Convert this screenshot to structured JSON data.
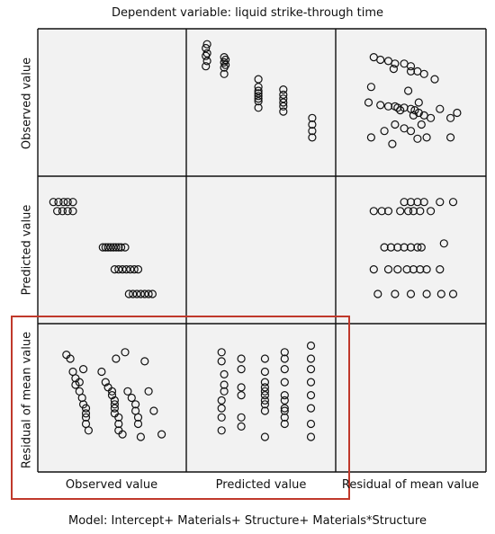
{
  "title": "Dependent variable: liquid strike-through time",
  "footer": "Model: Intercept+ Materials+ Structure+ Materials*Structure",
  "variables": [
    "Observed value",
    "Predicted value",
    "Residual of mean value"
  ],
  "colors": {
    "panel_bg": "#f2f2f2",
    "grid": "#111111",
    "marker": "#111111",
    "highlight": "#c0392b"
  },
  "highlight": {
    "description": "red box around residual row, observed and predicted columns",
    "rows": [
      2
    ],
    "cols": [
      0,
      1
    ]
  },
  "chart_data": {
    "type": "scatter",
    "title": "Dependent variable: liquid strike-through time",
    "matrix_variables": [
      "Observed value",
      "Predicted value",
      "Residual of mean value"
    ],
    "grid": "3x3 scatterplot matrix, diagonal empty",
    "scale": "normalized 0-1 (no tick labels shown)",
    "panels": [
      {
        "row": 0,
        "col": 1,
        "x": "Predicted value",
        "y": "Observed value",
        "points": [
          [
            0.08,
            0.78
          ],
          [
            0.08,
            0.86
          ],
          [
            0.08,
            0.92
          ],
          [
            0.09,
            0.82
          ],
          [
            0.09,
            0.88
          ],
          [
            0.09,
            0.95
          ],
          [
            0.22,
            0.72
          ],
          [
            0.22,
            0.77
          ],
          [
            0.22,
            0.81
          ],
          [
            0.22,
            0.85
          ],
          [
            0.23,
            0.79
          ],
          [
            0.23,
            0.83
          ],
          [
            0.48,
            0.46
          ],
          [
            0.48,
            0.51
          ],
          [
            0.48,
            0.53
          ],
          [
            0.48,
            0.55
          ],
          [
            0.48,
            0.57
          ],
          [
            0.48,
            0.59
          ],
          [
            0.48,
            0.62
          ],
          [
            0.48,
            0.68
          ],
          [
            0.67,
            0.43
          ],
          [
            0.67,
            0.47
          ],
          [
            0.67,
            0.5
          ],
          [
            0.67,
            0.53
          ],
          [
            0.67,
            0.56
          ],
          [
            0.67,
            0.6
          ],
          [
            0.89,
            0.23
          ],
          [
            0.89,
            0.28
          ],
          [
            0.89,
            0.33
          ],
          [
            0.89,
            0.38
          ]
        ]
      },
      {
        "row": 0,
        "col": 2,
        "x": "Residual of mean value",
        "y": "Observed value",
        "points": [
          [
            0.22,
            0.85
          ],
          [
            0.27,
            0.83
          ],
          [
            0.33,
            0.82
          ],
          [
            0.38,
            0.8
          ],
          [
            0.45,
            0.8
          ],
          [
            0.5,
            0.78
          ],
          [
            0.55,
            0.74
          ],
          [
            0.6,
            0.72
          ],
          [
            0.5,
            0.74
          ],
          [
            0.68,
            0.68
          ],
          [
            0.37,
            0.76
          ],
          [
            0.18,
            0.5
          ],
          [
            0.27,
            0.48
          ],
          [
            0.33,
            0.47
          ],
          [
            0.38,
            0.47
          ],
          [
            0.4,
            0.46
          ],
          [
            0.45,
            0.46
          ],
          [
            0.5,
            0.45
          ],
          [
            0.53,
            0.44
          ],
          [
            0.56,
            0.42
          ],
          [
            0.6,
            0.4
          ],
          [
            0.65,
            0.38
          ],
          [
            0.42,
            0.44
          ],
          [
            0.2,
            0.23
          ],
          [
            0.3,
            0.28
          ],
          [
            0.38,
            0.33
          ],
          [
            0.45,
            0.3
          ],
          [
            0.5,
            0.28
          ],
          [
            0.55,
            0.22
          ],
          [
            0.62,
            0.23
          ],
          [
            0.72,
            0.45
          ],
          [
            0.36,
            0.18
          ],
          [
            0.8,
            0.23
          ],
          [
            0.85,
            0.42
          ],
          [
            0.8,
            0.38
          ],
          [
            0.58,
            0.33
          ],
          [
            0.52,
            0.4
          ],
          [
            0.56,
            0.5
          ],
          [
            0.48,
            0.59
          ],
          [
            0.2,
            0.62
          ]
        ]
      },
      {
        "row": 1,
        "col": 0,
        "x": "Observed value",
        "y": "Predicted value",
        "points": [
          [
            0.05,
            0.87
          ],
          [
            0.09,
            0.87
          ],
          [
            0.13,
            0.87
          ],
          [
            0.16,
            0.87
          ],
          [
            0.2,
            0.87
          ],
          [
            0.08,
            0.8
          ],
          [
            0.12,
            0.8
          ],
          [
            0.16,
            0.8
          ],
          [
            0.2,
            0.8
          ],
          [
            0.43,
            0.52
          ],
          [
            0.45,
            0.52
          ],
          [
            0.47,
            0.52
          ],
          [
            0.49,
            0.52
          ],
          [
            0.51,
            0.52
          ],
          [
            0.53,
            0.52
          ],
          [
            0.55,
            0.52
          ],
          [
            0.57,
            0.52
          ],
          [
            0.6,
            0.52
          ],
          [
            0.52,
            0.35
          ],
          [
            0.55,
            0.35
          ],
          [
            0.58,
            0.35
          ],
          [
            0.61,
            0.35
          ],
          [
            0.64,
            0.35
          ],
          [
            0.67,
            0.35
          ],
          [
            0.7,
            0.35
          ],
          [
            0.63,
            0.16
          ],
          [
            0.66,
            0.16
          ],
          [
            0.69,
            0.16
          ],
          [
            0.72,
            0.16
          ],
          [
            0.75,
            0.16
          ],
          [
            0.78,
            0.16
          ],
          [
            0.81,
            0.16
          ]
        ]
      },
      {
        "row": 1,
        "col": 2,
        "x": "Residual of mean value",
        "y": "Predicted value",
        "points": [
          [
            0.25,
            0.16
          ],
          [
            0.38,
            0.16
          ],
          [
            0.5,
            0.16
          ],
          [
            0.62,
            0.16
          ],
          [
            0.73,
            0.16
          ],
          [
            0.82,
            0.16
          ],
          [
            0.22,
            0.35
          ],
          [
            0.33,
            0.35
          ],
          [
            0.4,
            0.35
          ],
          [
            0.47,
            0.35
          ],
          [
            0.52,
            0.35
          ],
          [
            0.57,
            0.35
          ],
          [
            0.62,
            0.35
          ],
          [
            0.72,
            0.35
          ],
          [
            0.3,
            0.52
          ],
          [
            0.35,
            0.52
          ],
          [
            0.4,
            0.52
          ],
          [
            0.45,
            0.52
          ],
          [
            0.5,
            0.52
          ],
          [
            0.55,
            0.52
          ],
          [
            0.58,
            0.52
          ],
          [
            0.75,
            0.55
          ],
          [
            0.22,
            0.8
          ],
          [
            0.28,
            0.8
          ],
          [
            0.33,
            0.8
          ],
          [
            0.42,
            0.8
          ],
          [
            0.48,
            0.8
          ],
          [
            0.52,
            0.8
          ],
          [
            0.57,
            0.8
          ],
          [
            0.65,
            0.8
          ],
          [
            0.45,
            0.87
          ],
          [
            0.5,
            0.87
          ],
          [
            0.55,
            0.87
          ],
          [
            0.6,
            0.87
          ],
          [
            0.72,
            0.87
          ],
          [
            0.82,
            0.87
          ]
        ]
      },
      {
        "row": 2,
        "col": 0,
        "x": "Observed value",
        "y": "Residual of mean value",
        "points": [
          [
            0.15,
            0.83
          ],
          [
            0.18,
            0.8
          ],
          [
            0.2,
            0.7
          ],
          [
            0.22,
            0.65
          ],
          [
            0.22,
            0.6
          ],
          [
            0.25,
            0.55
          ],
          [
            0.27,
            0.5
          ],
          [
            0.28,
            0.45
          ],
          [
            0.3,
            0.42
          ],
          [
            0.3,
            0.38
          ],
          [
            0.3,
            0.35
          ],
          [
            0.3,
            0.3
          ],
          [
            0.32,
            0.25
          ],
          [
            0.28,
            0.72
          ],
          [
            0.25,
            0.62
          ],
          [
            0.42,
            0.7
          ],
          [
            0.45,
            0.62
          ],
          [
            0.47,
            0.58
          ],
          [
            0.5,
            0.55
          ],
          [
            0.5,
            0.52
          ],
          [
            0.52,
            0.48
          ],
          [
            0.52,
            0.45
          ],
          [
            0.52,
            0.42
          ],
          [
            0.52,
            0.38
          ],
          [
            0.55,
            0.35
          ],
          [
            0.55,
            0.3
          ],
          [
            0.55,
            0.25
          ],
          [
            0.58,
            0.22
          ],
          [
            0.6,
            0.85
          ],
          [
            0.53,
            0.8
          ],
          [
            0.62,
            0.55
          ],
          [
            0.65,
            0.5
          ],
          [
            0.68,
            0.45
          ],
          [
            0.68,
            0.4
          ],
          [
            0.7,
            0.35
          ],
          [
            0.7,
            0.3
          ],
          [
            0.72,
            0.2
          ],
          [
            0.75,
            0.78
          ],
          [
            0.78,
            0.55
          ],
          [
            0.82,
            0.4
          ],
          [
            0.88,
            0.22
          ]
        ]
      },
      {
        "row": 2,
        "col": 1,
        "x": "Predicted value",
        "y": "Residual of mean value",
        "points": [
          [
            0.2,
            0.25
          ],
          [
            0.2,
            0.35
          ],
          [
            0.2,
            0.42
          ],
          [
            0.2,
            0.48
          ],
          [
            0.22,
            0.55
          ],
          [
            0.22,
            0.6
          ],
          [
            0.22,
            0.68
          ],
          [
            0.2,
            0.78
          ],
          [
            0.2,
            0.85
          ],
          [
            0.35,
            0.28
          ],
          [
            0.35,
            0.35
          ],
          [
            0.35,
            0.52
          ],
          [
            0.35,
            0.58
          ],
          [
            0.35,
            0.72
          ],
          [
            0.35,
            0.8
          ],
          [
            0.53,
            0.2
          ],
          [
            0.53,
            0.4
          ],
          [
            0.53,
            0.45
          ],
          [
            0.53,
            0.48
          ],
          [
            0.53,
            0.52
          ],
          [
            0.53,
            0.55
          ],
          [
            0.53,
            0.58
          ],
          [
            0.53,
            0.62
          ],
          [
            0.53,
            0.7
          ],
          [
            0.53,
            0.8
          ],
          [
            0.68,
            0.3
          ],
          [
            0.68,
            0.35
          ],
          [
            0.68,
            0.4
          ],
          [
            0.68,
            0.42
          ],
          [
            0.68,
            0.48
          ],
          [
            0.68,
            0.52
          ],
          [
            0.68,
            0.62
          ],
          [
            0.68,
            0.72
          ],
          [
            0.68,
            0.8
          ],
          [
            0.68,
            0.85
          ],
          [
            0.88,
            0.2
          ],
          [
            0.88,
            0.3
          ],
          [
            0.88,
            0.42
          ],
          [
            0.88,
            0.52
          ],
          [
            0.88,
            0.62
          ],
          [
            0.88,
            0.72
          ],
          [
            0.88,
            0.8
          ],
          [
            0.88,
            0.9
          ]
        ]
      }
    ]
  }
}
